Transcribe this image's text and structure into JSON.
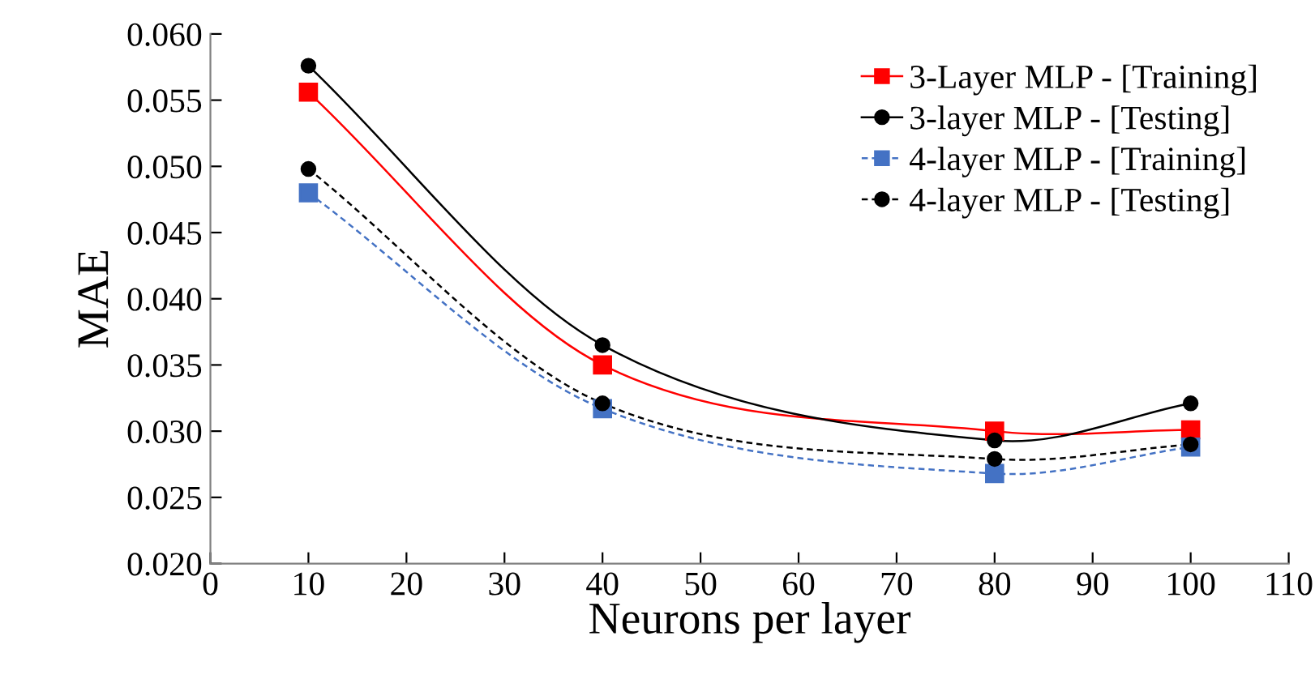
{
  "chart_data": {
    "type": "line",
    "xlabel": "Neurons per layer",
    "ylabel": "MAE",
    "xlim": [
      0,
      110
    ],
    "xticks": [
      0,
      10,
      20,
      30,
      40,
      50,
      60,
      70,
      80,
      90,
      100,
      110
    ],
    "ylim": [
      0.02,
      0.06
    ],
    "yticks": [
      {
        "value": 0.02,
        "label": "0.020"
      },
      {
        "value": 0.025,
        "label": "0.025"
      },
      {
        "value": 0.03,
        "label": "0.030"
      },
      {
        "value": 0.035,
        "label": "0.035"
      },
      {
        "value": 0.04,
        "label": "0.040"
      },
      {
        "value": 0.045,
        "label": "0.045"
      },
      {
        "value": 0.05,
        "label": "0.050"
      },
      {
        "value": 0.055,
        "label": "0.055"
      },
      {
        "value": 0.06,
        "label": "0.060"
      }
    ],
    "grid": false,
    "legend": "top right",
    "x": [
      10,
      40,
      80,
      100
    ],
    "series": [
      {
        "name": "3-Layer MLP - [Training]",
        "color": "#ff0000",
        "marker": "square",
        "line_style": "solid",
        "values": [
          0.0556,
          0.035,
          0.03,
          0.0301
        ]
      },
      {
        "name": "3-layer MLP - [Testing]",
        "color": "#000000",
        "marker": "circle",
        "line_style": "solid",
        "values": [
          0.0576,
          0.0365,
          0.0293,
          0.0321
        ]
      },
      {
        "name": "4-layer MLP - [Training]",
        "color": "#4472c4",
        "marker": "square",
        "line_style": "dashed",
        "values": [
          0.048,
          0.0317,
          0.0268,
          0.0288
        ]
      },
      {
        "name": "4-layer MLP - [Testing]",
        "color": "#000000",
        "marker": "circle",
        "line_style": "dashed",
        "values": [
          0.0498,
          0.0321,
          0.0279,
          0.029
        ]
      }
    ]
  }
}
